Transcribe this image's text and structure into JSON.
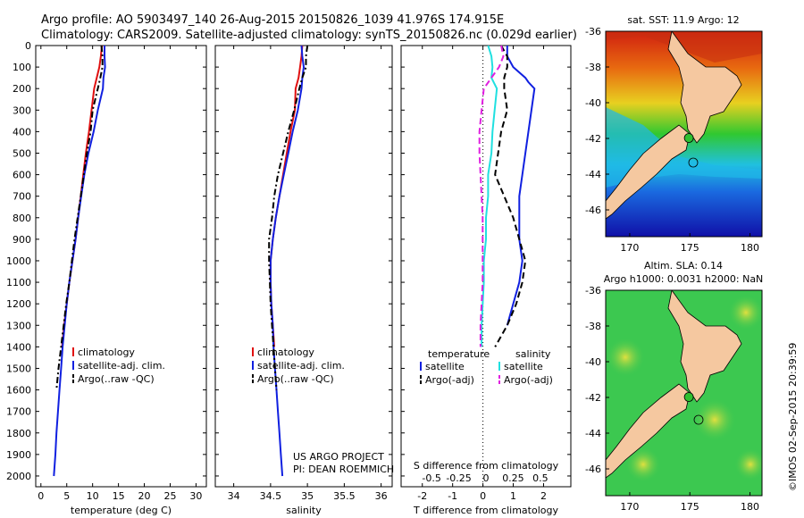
{
  "header": {
    "line1": "Argo profile: AO 5903497_140 26-Aug-2015 20150826_1039 41.976S 174.915E",
    "line2": "Climatology: CARS2009. Satellite-adjusted climatology: synTS_20150826.nc (0.029d earlier)"
  },
  "colors": {
    "climatology": "#e01010",
    "satellite": "#1020e0",
    "argo": "#000000",
    "salinity_sat": "#20e0e0",
    "salinity_argo": "#e020e0"
  },
  "depth_axis": {
    "ylim": [
      0,
      2050
    ],
    "ticks": [
      0,
      100,
      200,
      300,
      400,
      500,
      600,
      700,
      800,
      900,
      1000,
      1100,
      1200,
      1300,
      1400,
      1500,
      1600,
      1700,
      1800,
      1900,
      2000
    ]
  },
  "chart_data": [
    {
      "type": "line",
      "xlabel": "temperature (deg C)",
      "xlim": [
        -1,
        32
      ],
      "xticks": [
        0,
        5,
        10,
        15,
        20,
        25,
        30
      ],
      "legend": {
        "placement": "lower-middle",
        "entries": [
          "climatology",
          "satellite-adj. clim.",
          "Argo(..raw -QC)"
        ]
      },
      "series": [
        {
          "name": "climatology",
          "color": "#e01010",
          "style": "solid",
          "depth": [
            0,
            50,
            100,
            150,
            200,
            300,
            400,
            500,
            600,
            700,
            800,
            900,
            1000,
            1100,
            1200,
            1300,
            1400
          ],
          "values": [
            11.8,
            11.6,
            11.3,
            10.8,
            10.3,
            9.8,
            9.3,
            8.7,
            8.2,
            7.7,
            7.2,
            6.7,
            6.1,
            5.5,
            5.0,
            4.5,
            4.1
          ]
        },
        {
          "name": "satellite-adj. clim.",
          "color": "#1020e0",
          "style": "solid",
          "depth": [
            0,
            50,
            100,
            150,
            200,
            300,
            400,
            500,
            600,
            700,
            800,
            900,
            1000,
            1100,
            1200,
            1300,
            1400,
            1500,
            1600,
            1700,
            1800,
            1900,
            2000
          ],
          "values": [
            12.3,
            12.3,
            12.4,
            12.1,
            12.0,
            11.0,
            10.2,
            9.2,
            8.4,
            7.8,
            7.2,
            6.7,
            6.1,
            5.5,
            5.0,
            4.6,
            4.2,
            3.9,
            3.6,
            3.3,
            3.0,
            2.8,
            2.5
          ]
        },
        {
          "name": "Argo(..raw -QC)",
          "color": "#000000",
          "style": "dashdot",
          "depth": [
            0,
            50,
            100,
            150,
            200,
            300,
            400,
            500,
            600,
            700,
            800,
            900,
            1000,
            1100,
            1200,
            1300,
            1400,
            1500,
            1600
          ],
          "values": [
            11.7,
            11.9,
            11.9,
            11.5,
            11.0,
            10.0,
            9.6,
            8.9,
            8.3,
            7.7,
            7.1,
            6.5,
            6.0,
            5.5,
            4.9,
            4.4,
            3.9,
            3.4,
            3.0
          ]
        }
      ]
    },
    {
      "type": "line",
      "xlabel": "salinity",
      "xlim": [
        33.75,
        36.15
      ],
      "xticks": [
        34,
        34.5,
        35,
        35.5,
        36
      ],
      "xtick_labels": [
        "34",
        "34.5",
        "35",
        "35.5",
        "36"
      ],
      "legend": {
        "placement": "lower-middle",
        "entries": [
          "climatology",
          "satellite-adj. clim.",
          "Argo(..raw -QC)"
        ]
      },
      "series": [
        {
          "name": "climatology",
          "color": "#e01010",
          "style": "solid",
          "depth": [
            0,
            50,
            100,
            150,
            200,
            300,
            400,
            500,
            600,
            700,
            800,
            900,
            1000,
            1100,
            1200,
            1300,
            1400
          ],
          "values": [
            34.93,
            34.92,
            34.9,
            34.88,
            34.84,
            34.83,
            34.77,
            34.72,
            34.67,
            34.62,
            34.57,
            34.53,
            34.5,
            34.5,
            34.51,
            34.53,
            34.55
          ]
        },
        {
          "name": "satellite-adj. clim.",
          "color": "#1020e0",
          "style": "solid",
          "depth": [
            0,
            50,
            100,
            150,
            200,
            300,
            400,
            500,
            600,
            700,
            800,
            900,
            1000,
            1100,
            1200,
            1300,
            1400,
            1500,
            1600,
            1700,
            1800,
            1900,
            2000
          ],
          "values": [
            34.92,
            34.93,
            34.95,
            34.93,
            34.92,
            34.87,
            34.8,
            34.74,
            34.68,
            34.62,
            34.57,
            34.53,
            34.5,
            34.5,
            34.51,
            34.53,
            34.54,
            34.56,
            34.58,
            34.6,
            34.62,
            34.64,
            34.66
          ]
        },
        {
          "name": "Argo(..raw -QC)",
          "color": "#000000",
          "style": "dashdot",
          "depth": [
            0,
            50,
            100,
            150,
            200,
            300,
            400,
            500,
            600,
            700,
            800,
            900,
            1000,
            1100,
            1200,
            1300,
            1400,
            1500,
            1600
          ],
          "values": [
            35.0,
            34.98,
            34.98,
            34.93,
            34.89,
            34.82,
            34.74,
            34.67,
            34.6,
            34.55,
            34.52,
            34.48,
            34.48,
            34.49,
            34.5,
            34.52,
            34.54,
            34.56,
            34.58
          ]
        }
      ]
    },
    {
      "type": "line",
      "xlabel": "T difference from climatology",
      "xlim": [
        -2.7,
        2.9
      ],
      "xticks": [
        -2,
        -1,
        0,
        1,
        2
      ],
      "top_xlabel": "S difference from climatology",
      "top_xticks": [
        -0.5,
        -0.25,
        0,
        0.25,
        0.5
      ],
      "top_xtick_labels": [
        "-0.5",
        "-0.25",
        "0",
        "0.25",
        "0.5"
      ],
      "legend": {
        "placement": "lower-middle",
        "columns": [
          {
            "title": "temperature",
            "entries": [
              "satellite",
              "Argo(-adj)"
            ]
          },
          {
            "title": "salinity",
            "entries": [
              "satellite",
              "Argo(-adj)"
            ]
          }
        ]
      },
      "series": [
        {
          "name": "temperature satellite",
          "color": "#1020e0",
          "style": "solid",
          "depth": [
            0,
            50,
            100,
            150,
            170,
            200,
            300,
            400,
            500,
            600,
            700,
            800,
            900,
            1000,
            1100,
            1200,
            1300
          ],
          "values": [
            0.8,
            0.8,
            1.0,
            1.4,
            1.5,
            1.7,
            1.6,
            1.5,
            1.4,
            1.3,
            1.2,
            1.2,
            1.2,
            1.3,
            1.2,
            1.0,
            0.8
          ]
        },
        {
          "name": "temperature Argo(-adj)",
          "color": "#000000",
          "style": "dashed",
          "depth": [
            0,
            50,
            100,
            150,
            200,
            300,
            400,
            500,
            600,
            700,
            800,
            900,
            1000,
            1100,
            1200,
            1300,
            1400
          ],
          "values": [
            0.6,
            0.8,
            0.8,
            0.7,
            0.7,
            0.8,
            0.6,
            0.5,
            0.4,
            0.7,
            1.0,
            1.2,
            1.4,
            1.3,
            1.1,
            0.8,
            0.4
          ]
        },
        {
          "name": "salinity satellite",
          "color": "#20e0e0",
          "style": "solid",
          "depth": [
            0,
            50,
            100,
            150,
            200,
            300,
            400,
            500,
            600,
            700,
            800,
            900,
            1000,
            1100,
            1200,
            1300,
            1400
          ],
          "values": [
            0.02,
            0.05,
            0.06,
            0.05,
            0.1,
            0.08,
            0.06,
            0.05,
            0.02,
            0.02,
            0.0,
            0.0,
            -0.02,
            -0.02,
            -0.03,
            -0.04,
            -0.04
          ]
        },
        {
          "name": "salinity Argo(-adj)",
          "color": "#e020e0",
          "style": "dashed",
          "depth": [
            0,
            50,
            100,
            150,
            200,
            300,
            400,
            500,
            600,
            700,
            800,
            900,
            1000,
            1100,
            1200,
            1300,
            1400
          ],
          "values": [
            0.14,
            0.16,
            0.12,
            0.05,
            -0.02,
            -0.04,
            -0.06,
            -0.06,
            -0.05,
            -0.04,
            -0.03,
            -0.03,
            -0.03,
            -0.03,
            -0.04,
            -0.05,
            -0.05
          ]
        }
      ]
    },
    {
      "type": "heatmap",
      "title": "sat. SST: 11.9  Argo: 12",
      "xlim": [
        168,
        181
      ],
      "ylim": [
        -47.5,
        -36
      ],
      "xticks": [
        170,
        175,
        180
      ],
      "yticks": [
        -36,
        -38,
        -40,
        -42,
        -44,
        -46
      ],
      "marker": {
        "lon": 174.915,
        "lat": -41.976
      }
    },
    {
      "type": "heatmap",
      "title": "Altim. SLA: 0.14",
      "subtitle": "Argo h1000: 0.0031  h2000: NaN",
      "xlim": [
        168,
        181
      ],
      "ylim": [
        -47.5,
        -36
      ],
      "xticks": [
        170,
        175,
        180
      ],
      "yticks": [
        -36,
        -38,
        -40,
        -42,
        -44,
        -46
      ],
      "marker": {
        "lon": 174.915,
        "lat": -41.976
      }
    }
  ],
  "credits": {
    "project": "US ARGO PROJECT",
    "pi": "PI: DEAN ROEMMICH",
    "stamp": "©IMOS 02-Sep-2015 20:39:59"
  }
}
